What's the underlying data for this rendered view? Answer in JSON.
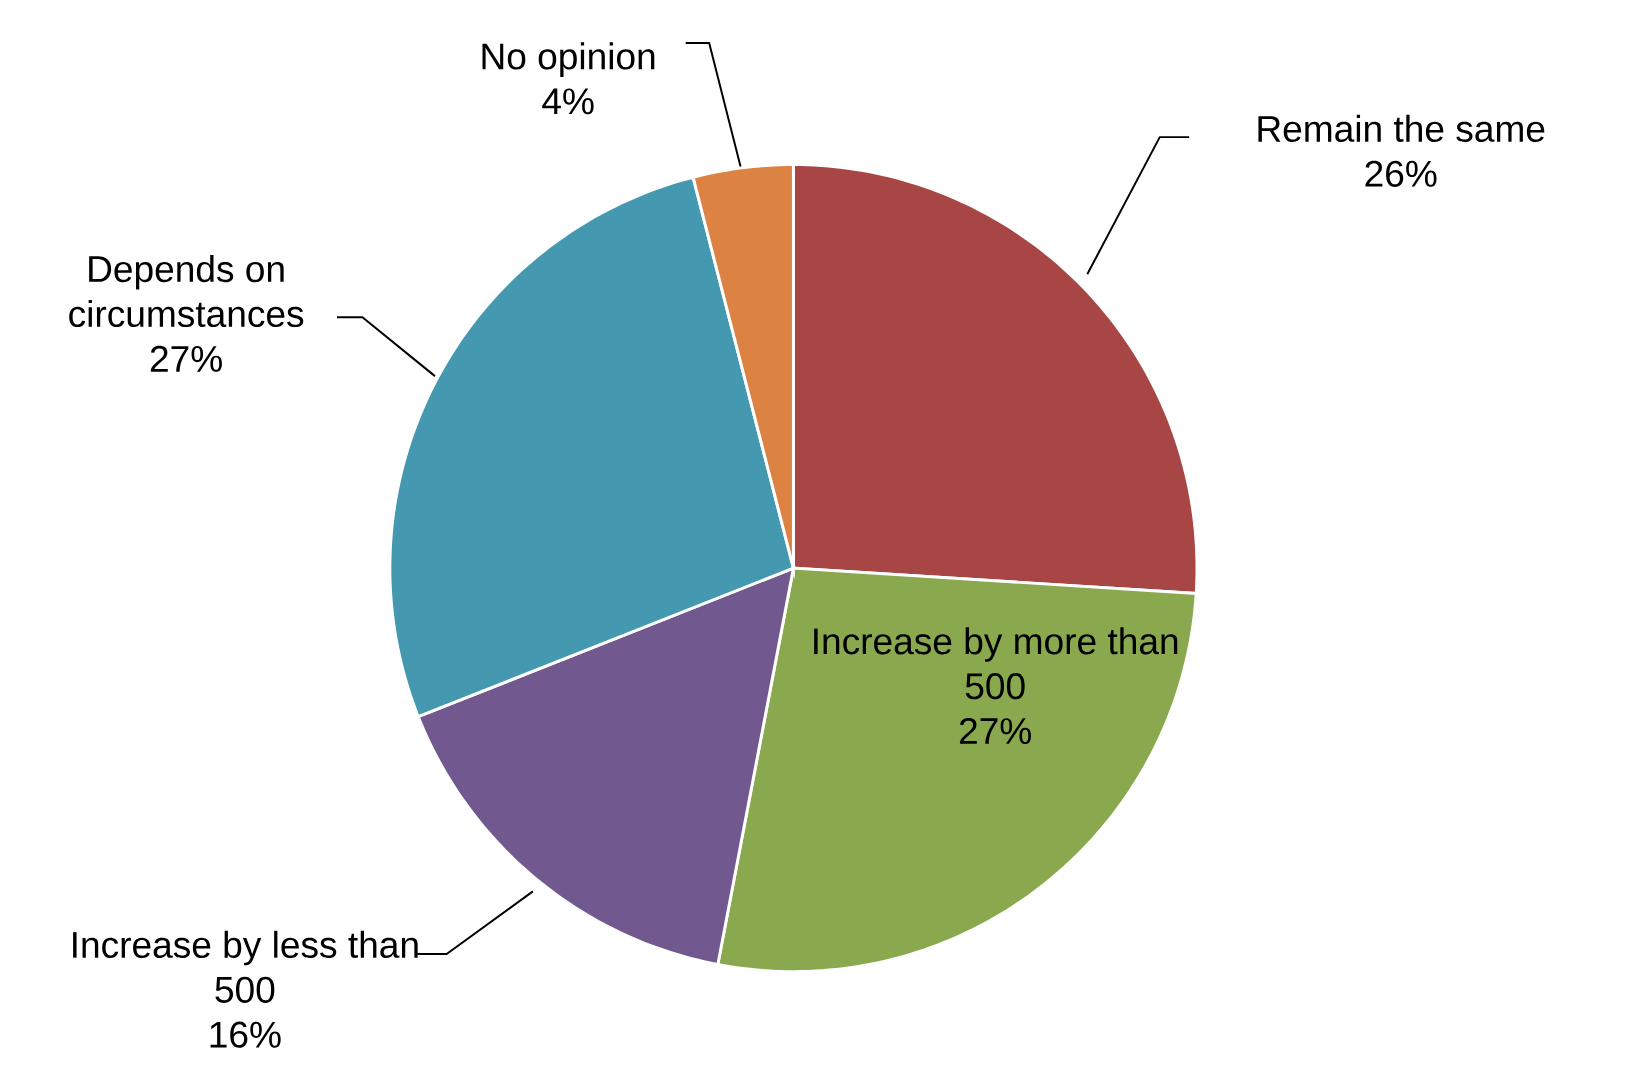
{
  "chart_data": {
    "type": "pie",
    "categories": [
      "Remain the same",
      "Increase by more than 500",
      "Increase by less than 500",
      "Depends on circumstances",
      "No opinion"
    ],
    "values": [
      26,
      27,
      16,
      27,
      4
    ],
    "value_labels": [
      "26%",
      "27%",
      "16%",
      "27%",
      "4%"
    ],
    "colors": [
      "#a84646",
      "#8aa84e",
      "#715990",
      "#4499b0",
      "#dc8344"
    ]
  }
}
